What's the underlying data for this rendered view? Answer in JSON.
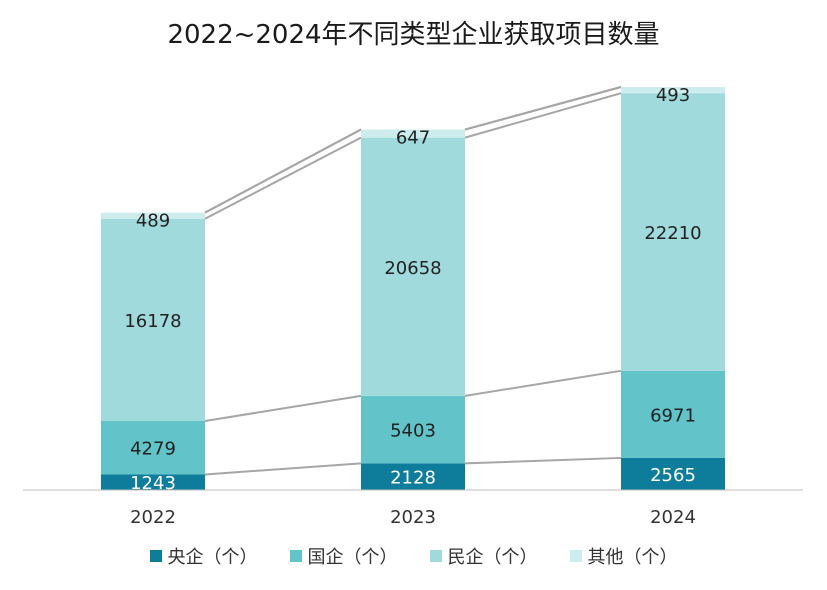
{
  "chart_data": {
    "type": "bar",
    "stacked": true,
    "title": "2022~2024年不同类型企业获取项目数量",
    "categories": [
      "2022",
      "2023",
      "2024"
    ],
    "series": [
      {
        "name": "央企（个）",
        "values": [
          1243,
          2128,
          2565
        ],
        "color": "#0e7c9b",
        "label_color": "#ffffff"
      },
      {
        "name": "国企（个）",
        "values": [
          4279,
          5403,
          6971
        ],
        "color": "#62c3c9",
        "label_color": "#222222"
      },
      {
        "name": "民企（个）",
        "values": [
          16178,
          20658,
          22210
        ],
        "color": "#a0dadc",
        "label_color": "#222222"
      },
      {
        "name": "其他（个）",
        "values": [
          489,
          647,
          493
        ],
        "color": "#cdeced",
        "label_color": "#222222"
      }
    ],
    "ylim": [
      0,
      32000
    ],
    "xlabel": "",
    "ylabel": "",
    "grid": false,
    "legend_position": "bottom",
    "connector_lines": true,
    "connector_color": "#a6a6a6"
  }
}
